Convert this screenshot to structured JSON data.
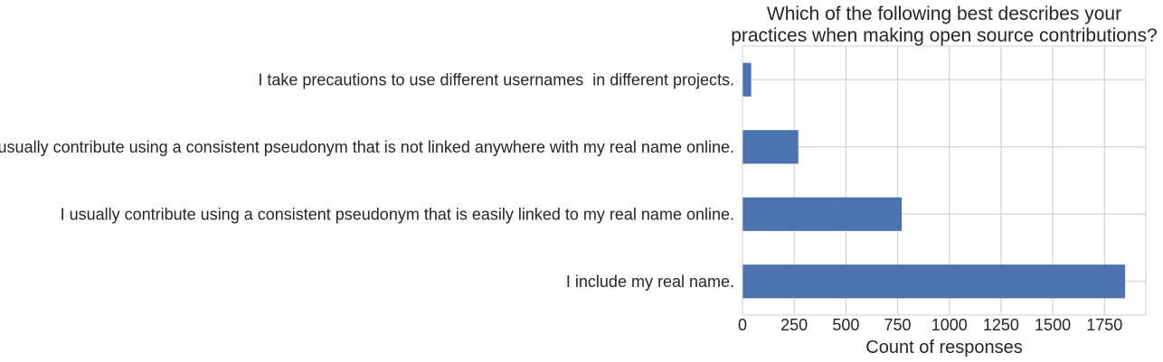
{
  "chart_data": {
    "type": "bar",
    "orientation": "horizontal",
    "title_lines": [
      "Which of the following best describes your",
      "practices when making open source contributions?"
    ],
    "xlabel": "Count of responses",
    "ylabel": "",
    "categories": [
      "I take precautions to use different usernames  in different projects.",
      "I usually contribute using a consistent pseudonym that is not linked anywhere with my real name online.",
      "I usually contribute using a consistent pseudonym that is easily linked to my real name online.",
      "I include my real name."
    ],
    "values": [
      42,
      270,
      770,
      1850
    ],
    "xlim": [
      0,
      1950
    ],
    "xticks": [
      0,
      250,
      500,
      750,
      1000,
      1250,
      1500,
      1750
    ],
    "grid": true,
    "bar_color": "#4c72b0"
  }
}
